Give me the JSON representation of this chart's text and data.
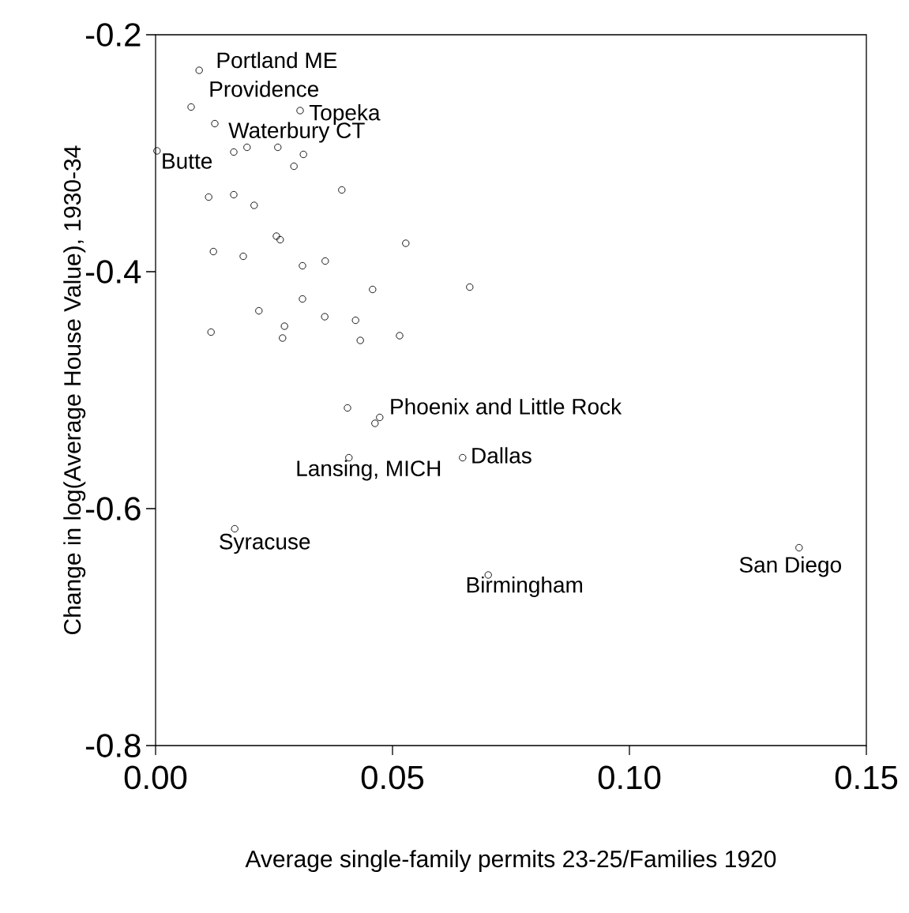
{
  "chart_data": {
    "type": "scatter",
    "xlabel": "Average single-family permits 23-25/Families 1920",
    "ylabel": "Change in log(Average House Value), 1930-34",
    "x": [
      0.0092,
      0.0075,
      0.0305,
      0.0125,
      0.0003,
      0.0165,
      0.0193,
      0.0258,
      0.0312,
      0.0292,
      0.0393,
      0.0112,
      0.0165,
      0.0208,
      0.0255,
      0.0263,
      0.0528,
      0.0122,
      0.0185,
      0.031,
      0.0358,
      0.0663,
      0.0458,
      0.031,
      0.0218,
      0.0272,
      0.0357,
      0.0422,
      0.0117,
      0.0268,
      0.0432,
      0.0515,
      0.0405,
      0.0473,
      0.0463,
      0.0408,
      0.0648,
      0.0167,
      0.0702,
      0.1358
    ],
    "series": [
      {
        "color": "#000000",
        "values": [
          -0.23,
          -0.261,
          -0.264,
          -0.275,
          -0.298,
          -0.299,
          -0.295,
          -0.295,
          -0.301,
          -0.311,
          -0.331,
          -0.337,
          -0.335,
          -0.344,
          -0.37,
          -0.373,
          -0.376,
          -0.383,
          -0.387,
          -0.395,
          -0.391,
          -0.413,
          -0.415,
          -0.423,
          -0.433,
          -0.446,
          -0.438,
          -0.441,
          -0.451,
          -0.456,
          -0.458,
          -0.454,
          -0.515,
          -0.523,
          -0.528,
          -0.557,
          -0.557,
          -0.617,
          -0.656,
          -0.633
        ]
      }
    ],
    "marker": "circle",
    "xlim": [
      0,
      0.15
    ],
    "ylim": [
      -0.8,
      -0.2
    ],
    "xticks": [
      {
        "value": 0,
        "label": "0.00"
      },
      {
        "value": 0.05,
        "label": "0.05"
      },
      {
        "value": 0.1,
        "label": "0.10"
      },
      {
        "value": 0.15,
        "label": "0.15"
      }
    ],
    "yticks": [
      -0.8,
      -0.6,
      -0.4,
      -0.2
    ],
    "annotations": [
      {
        "text": "Portland ME",
        "x": 0.0092,
        "y": -0.23
      },
      {
        "text": "Providence",
        "x": 0.0075,
        "y": -0.261
      },
      {
        "text": "Topeka",
        "x": 0.0305,
        "y": -0.264
      },
      {
        "text": "Waterbury CT",
        "x": 0.0125,
        "y": -0.275
      },
      {
        "text": "Butte",
        "x": 0.0003,
        "y": -0.298
      },
      {
        "text": "Phoenix and Little Rock",
        "x": 0.0473,
        "y": -0.523
      },
      {
        "text": "Lansing, MICH",
        "x": 0.0408,
        "y": -0.557
      },
      {
        "text": "Dallas",
        "x": 0.0648,
        "y": -0.557
      },
      {
        "text": "Syracuse",
        "x": 0.0167,
        "y": -0.617
      },
      {
        "text": "Birmingham",
        "x": 0.0702,
        "y": -0.656
      },
      {
        "text": "San Diego",
        "x": 0.1358,
        "y": -0.633
      }
    ]
  }
}
